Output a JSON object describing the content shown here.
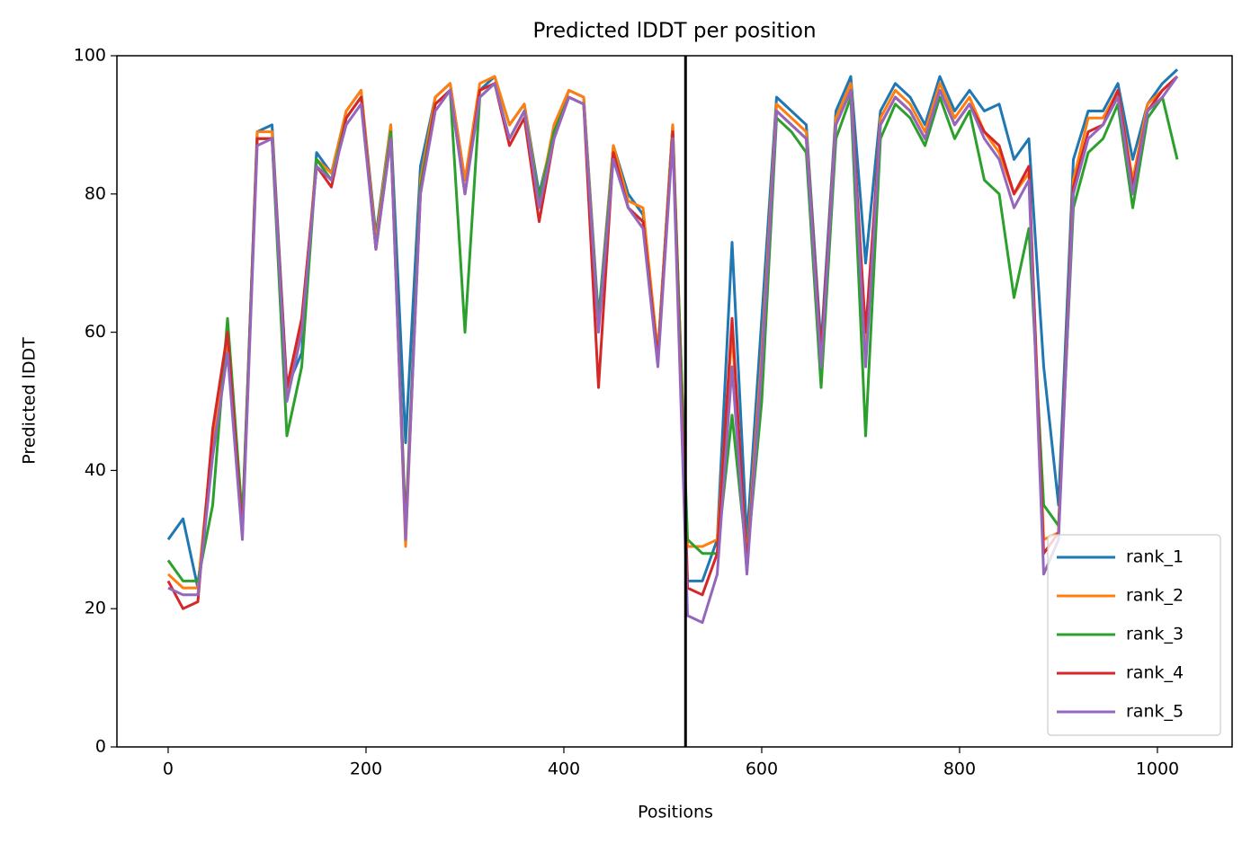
{
  "chart_data": {
    "type": "line",
    "title": "Predicted lDDT per position",
    "x_label": "Positions",
    "y_label": "Predicted lDDT",
    "x": [
      0,
      15,
      30,
      45,
      60,
      75,
      90,
      105,
      120,
      135,
      150,
      165,
      180,
      195,
      210,
      225,
      240,
      255,
      270,
      285,
      300,
      315,
      330,
      345,
      360,
      375,
      390,
      405,
      420,
      435,
      450,
      465,
      480,
      495,
      510,
      525,
      540,
      555,
      570,
      585,
      600,
      615,
      630,
      645,
      660,
      675,
      690,
      705,
      720,
      735,
      750,
      765,
      780,
      795,
      810,
      825,
      840,
      855,
      870,
      885,
      900,
      915,
      930,
      945,
      960,
      975,
      990,
      1005,
      1020
    ],
    "series": [
      {
        "name": "rank_1",
        "color": "#1f77b4",
        "values": [
          30,
          33,
          23,
          44,
          58,
          32,
          89,
          90,
          52,
          57,
          86,
          83,
          92,
          95,
          74,
          90,
          44,
          84,
          94,
          96,
          82,
          95,
          97,
          90,
          93,
          80,
          89,
          95,
          94,
          62,
          87,
          80,
          77,
          57,
          90,
          24,
          24,
          30,
          73,
          30,
          62,
          94,
          92,
          90,
          58,
          92,
          97,
          70,
          92,
          96,
          94,
          90,
          97,
          92,
          95,
          92,
          93,
          85,
          88,
          55,
          35,
          85,
          92,
          92,
          96,
          85,
          93,
          96,
          98
        ]
      },
      {
        "name": "rank_2",
        "color": "#ff7f0e",
        "values": [
          25,
          23,
          23,
          45,
          58,
          31,
          89,
          89,
          51,
          61,
          85,
          83,
          92,
          95,
          73,
          90,
          29,
          82,
          94,
          96,
          82,
          96,
          97,
          90,
          93,
          79,
          90,
          95,
          94,
          61,
          87,
          79,
          78,
          57,
          90,
          29,
          29,
          30,
          60,
          27,
          57,
          93,
          91,
          89,
          56,
          91,
          96,
          58,
          91,
          95,
          93,
          89,
          96,
          91,
          94,
          89,
          86,
          80,
          83,
          30,
          31,
          82,
          91,
          91,
          95,
          82,
          93,
          95,
          97
        ]
      },
      {
        "name": "rank_3",
        "color": "#2ca02c",
        "values": [
          27,
          24,
          24,
          35,
          62,
          33,
          88,
          88,
          45,
          55,
          85,
          82,
          91,
          94,
          72,
          89,
          32,
          81,
          93,
          95,
          60,
          94,
          96,
          88,
          92,
          79,
          89,
          94,
          93,
          61,
          86,
          78,
          76,
          56,
          89,
          30,
          28,
          28,
          48,
          27,
          50,
          91,
          89,
          86,
          52,
          88,
          94,
          45,
          88,
          93,
          91,
          87,
          94,
          88,
          92,
          82,
          80,
          65,
          75,
          35,
          32,
          78,
          86,
          88,
          93,
          78,
          91,
          94,
          85
        ]
      },
      {
        "name": "rank_4",
        "color": "#d62728",
        "values": [
          24,
          20,
          21,
          46,
          60,
          31,
          88,
          88,
          52,
          62,
          84,
          81,
          91,
          94,
          72,
          88,
          31,
          80,
          93,
          95,
          80,
          95,
          96,
          87,
          91,
          76,
          88,
          94,
          93,
          52,
          86,
          78,
          76,
          56,
          89,
          23,
          22,
          28,
          62,
          26,
          55,
          92,
          90,
          88,
          57,
          90,
          95,
          60,
          90,
          94,
          92,
          88,
          95,
          90,
          93,
          89,
          87,
          80,
          84,
          28,
          31,
          81,
          89,
          90,
          95,
          81,
          92,
          95,
          97
        ]
      },
      {
        "name": "rank_5",
        "color": "#9467bd",
        "values": [
          23,
          22,
          22,
          42,
          57,
          30,
          87,
          88,
          50,
          60,
          84,
          82,
          90,
          93,
          72,
          88,
          30,
          80,
          92,
          95,
          80,
          94,
          96,
          88,
          92,
          78,
          88,
          94,
          93,
          60,
          85,
          78,
          75,
          55,
          88,
          19,
          18,
          25,
          55,
          25,
          55,
          92,
          90,
          88,
          55,
          90,
          95,
          55,
          90,
          94,
          92,
          88,
          95,
          90,
          93,
          88,
          85,
          78,
          82,
          25,
          30,
          80,
          88,
          90,
          94,
          80,
          92,
          94,
          97
        ]
      }
    ],
    "vline": 523,
    "vline_color": "#000000",
    "xlim": [
      -51.8,
      1075.5
    ],
    "ylim": [
      0,
      100
    ],
    "xticks": [
      0,
      200,
      400,
      600,
      800,
      1000
    ],
    "yticks": [
      0,
      20,
      40,
      60,
      80,
      100
    ],
    "grid": false,
    "legend": "lower right"
  }
}
